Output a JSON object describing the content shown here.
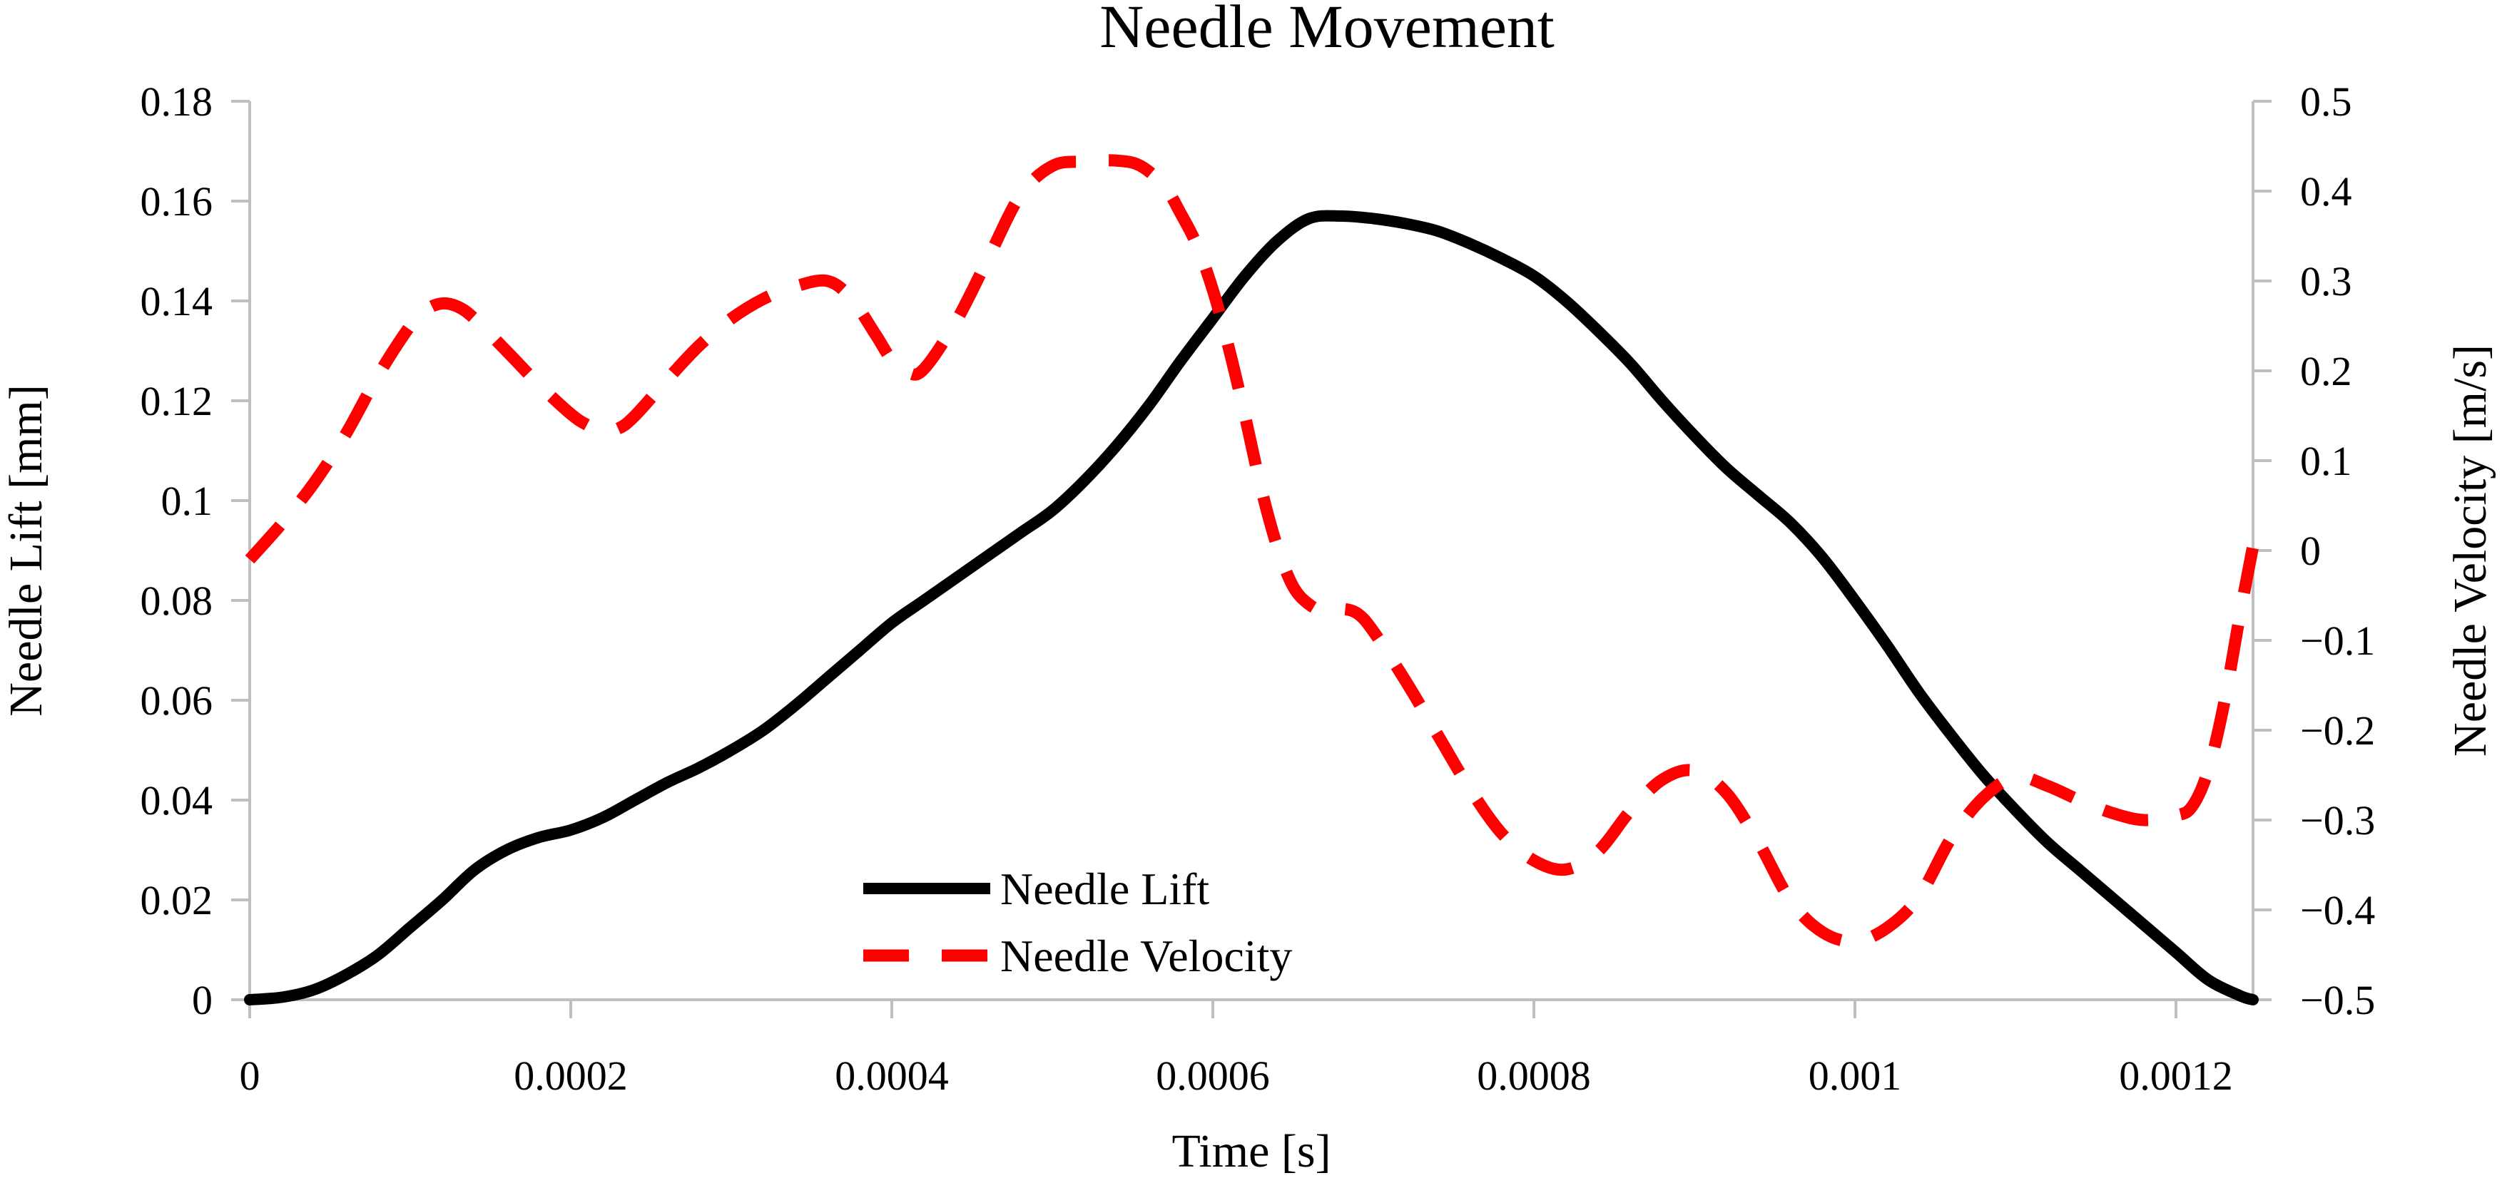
{
  "title": "Needle Movement",
  "colors": {
    "lift_line": "#000000",
    "velocity_line": "#FF0000",
    "axis_line": "#BFBFBF",
    "text": "#000000",
    "background": "#FFFFFF"
  },
  "axes": {
    "x": {
      "label": "Time [s]",
      "min": 0,
      "max": 0.001248,
      "tick_values": [
        0,
        0.0002,
        0.0004,
        0.0006,
        0.0008,
        0.001,
        0.0012
      ],
      "tick_labels": [
        "0",
        "0.0002",
        "0.0004",
        "0.0006",
        "0.0008",
        "0.001",
        "0.0012"
      ]
    },
    "y_left": {
      "label": "Needle Lift [mm]",
      "min": 0,
      "max": 0.18,
      "tick_values": [
        0.18,
        0.16,
        0.14,
        0.12,
        0.1,
        0.08,
        0.06,
        0.04,
        0.02,
        0
      ],
      "tick_labels": [
        "0.18",
        "0.16",
        "0.14",
        "0.12",
        "0.1",
        "0.08",
        "0.06",
        "0.04",
        "0.02",
        "0"
      ]
    },
    "y_right": {
      "label": "Needle Velocity [m/s]",
      "min": -0.5,
      "max": 0.5,
      "tick_values": [
        0.5,
        0.4,
        0.3,
        0.2,
        0.1,
        0,
        -0.1,
        -0.2,
        -0.3,
        -0.4,
        -0.5
      ],
      "tick_labels": [
        "0.5",
        "0.4",
        "0.3",
        "0.2",
        "0.1",
        "0",
        "−0.1",
        "−0.2",
        "−0.3",
        "−0.4",
        "−0.5"
      ]
    }
  },
  "legend": {
    "items": [
      {
        "label": "Needle Lift",
        "color": "#000000",
        "dashed": false
      },
      {
        "label": "Needle Velocity",
        "color": "#FF0000",
        "dashed": true
      }
    ]
  },
  "chart_data": {
    "type": "line",
    "title": "Needle Movement",
    "xlabel": "Time [s]",
    "ylabel_left": "Needle Lift [mm]",
    "ylabel_right": "Needle Velocity [m/s]",
    "xlim": [
      0,
      0.001248
    ],
    "ylim_left": [
      0,
      0.18
    ],
    "ylim_right": [
      -0.5,
      0.5
    ],
    "grid": false,
    "legend_position": "inside-bottom-center",
    "series": [
      {
        "name": "Needle Lift",
        "axis": "left",
        "units": "mm",
        "style": "solid",
        "color": "#000000",
        "points": [
          [
            0,
            0
          ],
          [
            2e-05,
            0.0005
          ],
          [
            4e-05,
            0.002
          ],
          [
            6e-05,
            0.005
          ],
          [
            8e-05,
            0.009
          ],
          [
            0.0001,
            0.0145
          ],
          [
            0.00012,
            0.02
          ],
          [
            0.00014,
            0.026
          ],
          [
            0.00016,
            0.03
          ],
          [
            0.00018,
            0.0325
          ],
          [
            0.0002,
            0.034
          ],
          [
            0.00022,
            0.0365
          ],
          [
            0.00024,
            0.04
          ],
          [
            0.00026,
            0.0435
          ],
          [
            0.00028,
            0.0465
          ],
          [
            0.0003,
            0.05
          ],
          [
            0.00032,
            0.054
          ],
          [
            0.00034,
            0.059
          ],
          [
            0.00036,
            0.0645
          ],
          [
            0.00038,
            0.07
          ],
          [
            0.0004,
            0.0755
          ],
          [
            0.00042,
            0.08
          ],
          [
            0.00044,
            0.0845
          ],
          [
            0.00046,
            0.089
          ],
          [
            0.00048,
            0.0935
          ],
          [
            0.0005,
            0.098
          ],
          [
            0.00052,
            0.104
          ],
          [
            0.00054,
            0.111
          ],
          [
            0.00056,
            0.119
          ],
          [
            0.00058,
            0.128
          ],
          [
            0.0006,
            0.1365
          ],
          [
            0.00062,
            0.145
          ],
          [
            0.00064,
            0.152
          ],
          [
            0.00066,
            0.1565
          ],
          [
            0.00068,
            0.157
          ],
          [
            0.0007,
            0.1565
          ],
          [
            0.00072,
            0.1555
          ],
          [
            0.00074,
            0.154
          ],
          [
            0.00076,
            0.1515
          ],
          [
            0.00078,
            0.1485
          ],
          [
            0.0008,
            0.145
          ],
          [
            0.00082,
            0.14
          ],
          [
            0.00084,
            0.134
          ],
          [
            0.00086,
            0.1275
          ],
          [
            0.00088,
            0.12
          ],
          [
            0.0009,
            0.113
          ],
          [
            0.00092,
            0.1065
          ],
          [
            0.00094,
            0.101
          ],
          [
            0.00096,
            0.0955
          ],
          [
            0.00098,
            0.0885
          ],
          [
            0.001,
            0.08
          ],
          [
            0.00102,
            0.071
          ],
          [
            0.00104,
            0.0615
          ],
          [
            0.00106,
            0.053
          ],
          [
            0.00108,
            0.045
          ],
          [
            0.0011,
            0.038
          ],
          [
            0.00112,
            0.0315
          ],
          [
            0.00114,
            0.026
          ],
          [
            0.00116,
            0.0205
          ],
          [
            0.00118,
            0.015
          ],
          [
            0.0012,
            0.0095
          ],
          [
            0.00122,
            0.004
          ],
          [
            0.00124,
            0.0008
          ],
          [
            0.001248,
            0
          ]
        ]
      },
      {
        "name": "Needle Velocity",
        "axis": "right",
        "units": "m/s",
        "style": "dashed",
        "color": "#FF0000",
        "points": [
          [
            0,
            -0.01
          ],
          [
            2e-05,
            0.03
          ],
          [
            4e-05,
            0.075
          ],
          [
            6e-05,
            0.13
          ],
          [
            8e-05,
            0.195
          ],
          [
            0.0001,
            0.25
          ],
          [
            0.00011,
            0.268
          ],
          [
            0.00012,
            0.275
          ],
          [
            0.00013,
            0.271
          ],
          [
            0.00014,
            0.258
          ],
          [
            0.00016,
            0.222
          ],
          [
            0.00018,
            0.185
          ],
          [
            0.0002,
            0.152
          ],
          [
            0.00021,
            0.14
          ],
          [
            0.00022,
            0.133
          ],
          [
            0.00023,
            0.136
          ],
          [
            0.00024,
            0.15
          ],
          [
            0.00026,
            0.19
          ],
          [
            0.00028,
            0.228
          ],
          [
            0.0003,
            0.258
          ],
          [
            0.00032,
            0.28
          ],
          [
            0.00034,
            0.294
          ],
          [
            0.00036,
            0.3
          ],
          [
            0.000375,
            0.28
          ],
          [
            0.00039,
            0.24
          ],
          [
            0.0004,
            0.212
          ],
          [
            0.00041,
            0.198
          ],
          [
            0.00042,
            0.202
          ],
          [
            0.00044,
            0.255
          ],
          [
            0.00046,
            0.325
          ],
          [
            0.00048,
            0.395
          ],
          [
            0.0005,
            0.428
          ],
          [
            0.00052,
            0.433
          ],
          [
            0.00054,
            0.434
          ],
          [
            0.000555,
            0.428
          ],
          [
            0.00057,
            0.405
          ],
          [
            0.00058,
            0.375
          ],
          [
            0.00059,
            0.34
          ],
          [
            0.0006,
            0.29
          ],
          [
            0.00061,
            0.225
          ],
          [
            0.00062,
            0.15
          ],
          [
            0.00063,
            0.07
          ],
          [
            0.00064,
            0.005
          ],
          [
            0.00065,
            -0.04
          ],
          [
            0.00066,
            -0.06
          ],
          [
            0.00067,
            -0.068
          ],
          [
            0.00068,
            -0.065
          ],
          [
            0.00069,
            -0.07
          ],
          [
            0.0007,
            -0.09
          ],
          [
            0.00072,
            -0.145
          ],
          [
            0.00074,
            -0.205
          ],
          [
            0.00076,
            -0.265
          ],
          [
            0.00078,
            -0.315
          ],
          [
            0.0008,
            -0.345
          ],
          [
            0.00082,
            -0.355
          ],
          [
            0.00084,
            -0.335
          ],
          [
            0.00086,
            -0.29
          ],
          [
            0.00088,
            -0.255
          ],
          [
            0.0009,
            -0.245
          ],
          [
            0.00092,
            -0.27
          ],
          [
            0.00094,
            -0.325
          ],
          [
            0.00096,
            -0.39
          ],
          [
            0.00098,
            -0.425
          ],
          [
            0.001,
            -0.435
          ],
          [
            0.00102,
            -0.42
          ],
          [
            0.00104,
            -0.385
          ],
          [
            0.00106,
            -0.32
          ],
          [
            0.00108,
            -0.275
          ],
          [
            0.0011,
            -0.252
          ],
          [
            0.00112,
            -0.262
          ],
          [
            0.00114,
            -0.278
          ],
          [
            0.00116,
            -0.292
          ],
          [
            0.00118,
            -0.3
          ],
          [
            0.0012,
            -0.295
          ],
          [
            0.00121,
            -0.285
          ],
          [
            0.00122,
            -0.245
          ],
          [
            0.00123,
            -0.17
          ],
          [
            0.00124,
            -0.07
          ],
          [
            0.001248,
            0.005
          ]
        ]
      }
    ]
  }
}
